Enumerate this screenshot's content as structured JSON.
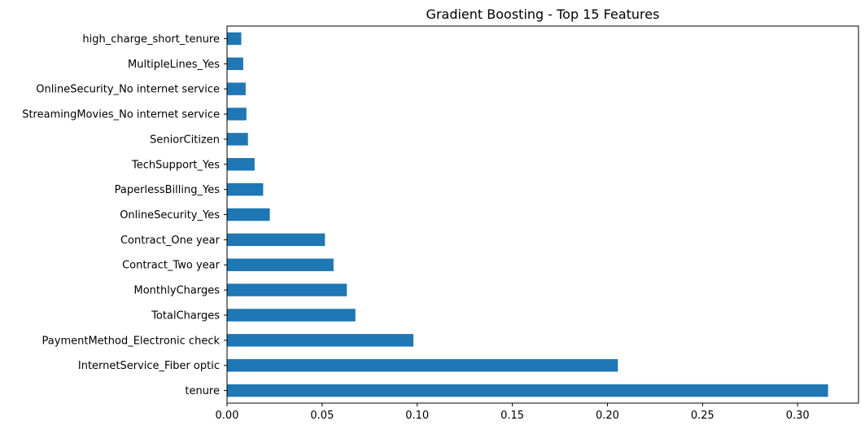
{
  "chart_data": {
    "type": "bar",
    "orientation": "horizontal",
    "title": "Gradient Boosting - Top 15 Features",
    "xlabel": "",
    "ylabel": "",
    "xlim": [
      0,
      0.332
    ],
    "xticks": [
      "0.00",
      "0.05",
      "0.10",
      "0.15",
      "0.20",
      "0.25",
      "0.30"
    ],
    "grid": false,
    "color": "#1f77b4",
    "categories": [
      "high_charge_short_tenure",
      "MultipleLines_Yes",
      "OnlineSecurity_No internet service",
      "StreamingMovies_No internet service",
      "SeniorCitizen",
      "TechSupport_Yes",
      "PaperlessBilling_Yes",
      "OnlineSecurity_Yes",
      "Contract_One year",
      "Contract_Two year",
      "MonthlyCharges",
      "TotalCharges",
      "PaymentMethod_Electronic check",
      "InternetService_Fiber optic",
      "tenure"
    ],
    "values": [
      0.0075,
      0.0085,
      0.0098,
      0.0102,
      0.011,
      0.0145,
      0.019,
      0.0225,
      0.0515,
      0.056,
      0.063,
      0.0675,
      0.098,
      0.2055,
      0.316
    ]
  }
}
